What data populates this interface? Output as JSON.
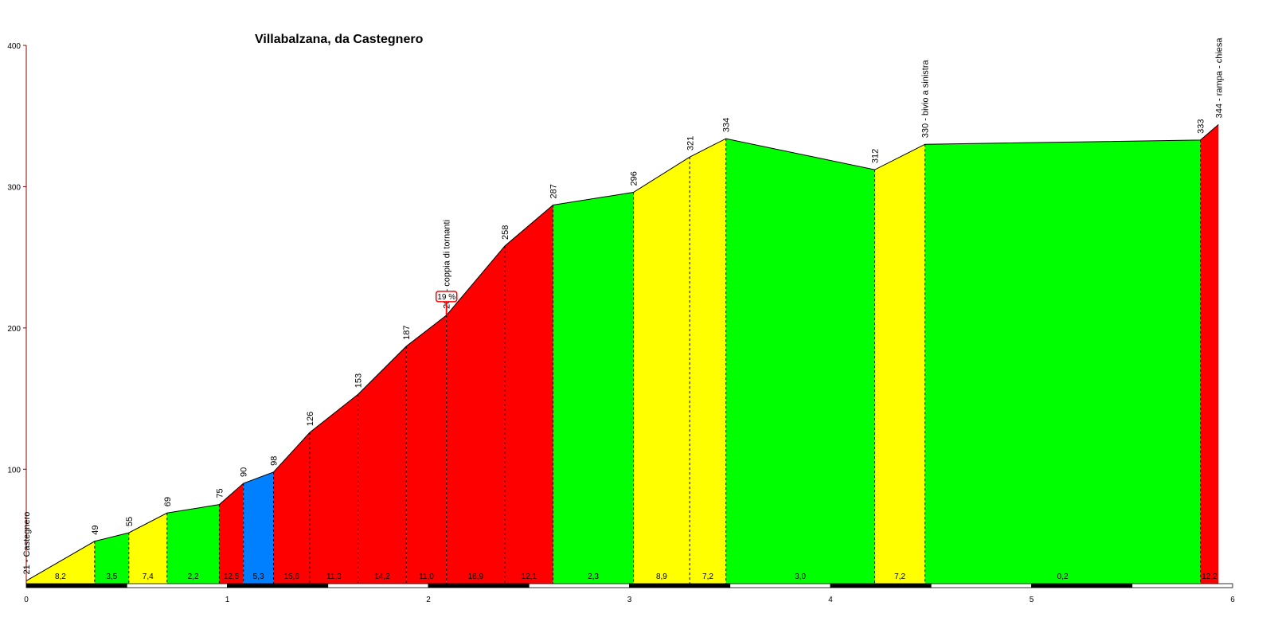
{
  "chart_data": {
    "type": "area",
    "title": "Villabalzana, da Castegnero",
    "xlabel": "",
    "ylabel": "",
    "xlim": [
      0,
      6
    ],
    "ylim": [
      19,
      400
    ],
    "x_ticks": [
      "0",
      "1",
      "2",
      "3",
      "4",
      "5",
      "6"
    ],
    "y_ticks": [
      "100",
      "200",
      "300",
      "400"
    ],
    "grade_colors": {
      "green": "#00ff00",
      "yellow": "#ffff00",
      "red": "#ff0000",
      "blue": "#0080ff"
    },
    "points": [
      {
        "km": 0.0,
        "alt": 21,
        "label": "21 - Castegnero"
      },
      {
        "km": 0.34,
        "alt": 49,
        "label": "49"
      },
      {
        "km": 0.51,
        "alt": 55,
        "label": "55"
      },
      {
        "km": 0.7,
        "alt": 69,
        "label": "69"
      },
      {
        "km": 0.96,
        "alt": 75,
        "label": "75"
      },
      {
        "km": 1.08,
        "alt": 90,
        "label": "90"
      },
      {
        "km": 1.23,
        "alt": 98,
        "label": "98"
      },
      {
        "km": 1.41,
        "alt": 126,
        "label": "126"
      },
      {
        "km": 1.65,
        "alt": 153,
        "label": "153"
      },
      {
        "km": 1.89,
        "alt": 187,
        "label": "187"
      },
      {
        "km": 2.09,
        "alt": 209,
        "label": "209 - coppia di tornanti"
      },
      {
        "km": 2.38,
        "alt": 258,
        "label": "258"
      },
      {
        "km": 2.62,
        "alt": 287,
        "label": "287"
      },
      {
        "km": 3.02,
        "alt": 296,
        "label": "296"
      },
      {
        "km": 3.3,
        "alt": 321,
        "label": "321"
      },
      {
        "km": 3.48,
        "alt": 334,
        "label": "334"
      },
      {
        "km": 4.22,
        "alt": 312,
        "label": "312"
      },
      {
        "km": 4.47,
        "alt": 330,
        "label": "330 - bivio a sinistra"
      },
      {
        "km": 5.84,
        "alt": 333,
        "label": "333"
      },
      {
        "km": 5.93,
        "alt": 344,
        "label": "344 - rampa - chiesa"
      }
    ],
    "segments": [
      {
        "grade": "8,2",
        "color": "yellow"
      },
      {
        "grade": "3,5",
        "color": "green"
      },
      {
        "grade": "7,4",
        "color": "yellow"
      },
      {
        "grade": "2,2",
        "color": "green"
      },
      {
        "grade": "12,5",
        "color": "red"
      },
      {
        "grade": "5,3",
        "color": "blue"
      },
      {
        "grade": "15,6",
        "color": "red"
      },
      {
        "grade": "11,3",
        "color": "red"
      },
      {
        "grade": "14,2",
        "color": "red"
      },
      {
        "grade": "11,0",
        "color": "red"
      },
      {
        "grade": "16,9",
        "color": "red"
      },
      {
        "grade": "12,1",
        "color": "red"
      },
      {
        "grade": "2,3",
        "color": "green"
      },
      {
        "grade": "8,9",
        "color": "yellow"
      },
      {
        "grade": "7,2",
        "color": "yellow"
      },
      {
        "grade": "3,0",
        "color": "green"
      },
      {
        "grade": "7,2",
        "color": "yellow"
      },
      {
        "grade": "0,2",
        "color": "green"
      },
      {
        "grade": "12,2",
        "color": "red"
      }
    ],
    "max_grade": {
      "text": "19 %",
      "km": 2.09,
      "alt": 209
    }
  }
}
